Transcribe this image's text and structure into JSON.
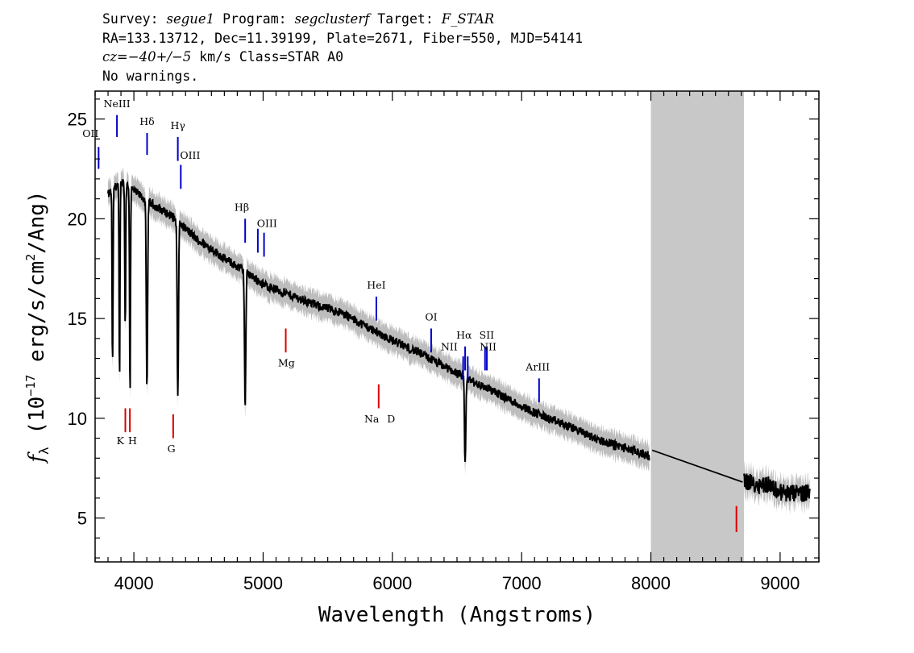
{
  "header": {
    "survey_label": "Survey: ",
    "survey": "segue1",
    "program_label": " Program: ",
    "program": "segclusterf",
    "target_label": " Target: ",
    "target": "F_STAR",
    "line2": "RA=133.13712, Dec=11.39199, Plate=2671, Fiber=550, MJD=54141",
    "cz_label": "cz=",
    "cz": "−40+/−5",
    "cz_rest": " km/s Class=STAR A0",
    "line4": "No warnings."
  },
  "colors": {
    "emission": "#0000cc",
    "absorption": "#dd0000",
    "spectrum": "#000000",
    "error_band": "#bdbdbd",
    "masked_region": "#c8c8c8"
  },
  "chart_data": {
    "type": "line",
    "xlabel": "Wavelength (Angstroms)",
    "ylabel_parts": {
      "f": "f",
      "sub": "λ",
      "open": " (10",
      "exp1": "−17",
      "mid": " erg/s/cm",
      "exp2": "2",
      "close": "/Ang)"
    },
    "xlim": [
      3700,
      9300
    ],
    "ylim": [
      2.8,
      26.4
    ],
    "x_ticks": [
      4000,
      5000,
      6000,
      7000,
      8000,
      9000
    ],
    "x_tick_labels": [
      "4000",
      "5000",
      "6000",
      "7000",
      "8000",
      "9000"
    ],
    "y_ticks": [
      5,
      10,
      15,
      20,
      25
    ],
    "y_tick_labels": [
      "5",
      "10",
      "15",
      "20",
      "25"
    ],
    "masked_region": [
      8000,
      8720
    ],
    "continuum": [
      [
        3800,
        21.2
      ],
      [
        3900,
        21.9
      ],
      [
        4000,
        21.4
      ],
      [
        4100,
        20.9
      ],
      [
        4200,
        20.5
      ],
      [
        4300,
        20.1
      ],
      [
        4400,
        19.5
      ],
      [
        4500,
        18.9
      ],
      [
        4600,
        18.5
      ],
      [
        4700,
        18.0
      ],
      [
        4800,
        17.6
      ],
      [
        4900,
        17.2
      ],
      [
        5000,
        16.7
      ],
      [
        5200,
        16.2
      ],
      [
        5400,
        15.7
      ],
      [
        5600,
        15.3
      ],
      [
        5800,
        14.6
      ],
      [
        6000,
        13.9
      ],
      [
        6200,
        13.3
      ],
      [
        6400,
        12.6
      ],
      [
        6600,
        11.9
      ],
      [
        6800,
        11.3
      ],
      [
        7000,
        10.6
      ],
      [
        7200,
        10.0
      ],
      [
        7400,
        9.5
      ],
      [
        7600,
        8.9
      ],
      [
        7800,
        8.5
      ],
      [
        7990,
        8.1
      ]
    ],
    "red_continuum": [
      [
        8720,
        6.9
      ],
      [
        8800,
        6.7
      ],
      [
        8900,
        6.7
      ],
      [
        9000,
        6.3
      ],
      [
        9100,
        6.2
      ],
      [
        9230,
        6.3
      ]
    ],
    "interpolation": [
      [
        8010,
        8.4
      ],
      [
        8710,
        6.8
      ]
    ],
    "absorption_features": [
      {
        "wave": 3835,
        "flux": 12.5
      },
      {
        "wave": 3889,
        "flux": 11.8
      },
      {
        "wave": 3933,
        "flux": 14.5
      },
      {
        "wave": 3970,
        "flux": 11.2
      },
      {
        "wave": 4101,
        "flux": 11.3
      },
      {
        "wave": 4340,
        "flux": 11.0
      },
      {
        "wave": 4861,
        "flux": 10.5
      },
      {
        "wave": 6563,
        "flux": 7.6
      }
    ],
    "emission_lines": [
      {
        "label": "OII",
        "wave": 3727,
        "y_top": 23.6,
        "y_bottom": 22.5
      },
      {
        "label": "NeIII",
        "wave": 3869,
        "y_top": 25.2,
        "y_bottom": 24.1
      },
      {
        "label": "Hδ",
        "wave": 4102,
        "y_top": 24.3,
        "y_bottom": 23.2
      },
      {
        "label": "Hγ",
        "wave": 4340,
        "y_top": 24.1,
        "y_bottom": 22.9
      },
      {
        "label": "OIII",
        "wave": 4363,
        "y_top": 22.7,
        "y_bottom": 21.5
      },
      {
        "label": "Hβ",
        "wave": 4861,
        "y_top": 20.0,
        "y_bottom": 18.8
      },
      {
        "label": "OIII",
        "wave": 4959,
        "y_top": 19.5,
        "y_bottom": 18.3
      },
      {
        "label": "OIII",
        "wave": 5007,
        "y_top": 19.3,
        "y_bottom": 18.1
      },
      {
        "label": "HeI",
        "wave": 5876,
        "y_top": 16.1,
        "y_bottom": 14.9
      },
      {
        "label": "OI",
        "wave": 6300,
        "y_top": 14.5,
        "y_bottom": 13.3
      },
      {
        "label": "NII",
        "wave": 6548,
        "y_top": 13.1,
        "y_bottom": 11.9
      },
      {
        "label": "Hα",
        "wave": 6563,
        "y_top": 13.6,
        "y_bottom": 12.4
      },
      {
        "label": "NII",
        "wave": 6583,
        "y_top": 13.1,
        "y_bottom": 11.9
      },
      {
        "label": "SII",
        "wave": 6717,
        "y_top": 13.6,
        "y_bottom": 12.4
      },
      {
        "label": "SII",
        "wave": 6731,
        "y_top": 13.6,
        "y_bottom": 12.4
      },
      {
        "label": "ArIII",
        "wave": 7135,
        "y_top": 12.0,
        "y_bottom": 10.8
      }
    ],
    "absorption_lines": [
      {
        "label": "K",
        "wave": 3934,
        "y_top": 10.5,
        "y_bottom": 9.3
      },
      {
        "label": "H",
        "wave": 3969,
        "y_top": 10.5,
        "y_bottom": 9.3
      },
      {
        "label": "G",
        "wave": 4304,
        "y_top": 10.2,
        "y_bottom": 9.0
      },
      {
        "label": "Mg",
        "wave": 5175,
        "y_top": 14.5,
        "y_bottom": 13.3
      },
      {
        "label": "Na",
        "wave": 5894,
        "y_top": 11.7,
        "y_bottom": 10.5
      },
      {
        "label": "",
        "wave": 8662,
        "y_top": 5.6,
        "y_bottom": 4.3
      }
    ],
    "line_label_texts": [
      {
        "text": "OII",
        "wave": 3727,
        "y": 24.1,
        "anchor": "end"
      },
      {
        "text": "NeIII",
        "wave": 3869,
        "y": 25.6,
        "anchor": "middle"
      },
      {
        "text": "Hδ",
        "wave": 4102,
        "y": 24.7,
        "anchor": "middle"
      },
      {
        "text": "Hγ",
        "wave": 4340,
        "y": 24.5,
        "anchor": "middle"
      },
      {
        "text": "OIII",
        "wave": 4435,
        "y": 23.0,
        "anchor": "middle"
      },
      {
        "text": "Hβ",
        "wave": 4835,
        "y": 20.4,
        "anchor": "middle"
      },
      {
        "text": "OIII",
        "wave": 5030,
        "y": 19.6,
        "anchor": "middle"
      },
      {
        "text": "HeI",
        "wave": 5876,
        "y": 16.5,
        "anchor": "middle"
      },
      {
        "text": "OI",
        "wave": 6300,
        "y": 14.9,
        "anchor": "middle"
      },
      {
        "text": "NII",
        "wave": 6440,
        "y": 13.4,
        "anchor": "middle"
      },
      {
        "text": "Hα",
        "wave": 6555,
        "y": 14.0,
        "anchor": "middle"
      },
      {
        "text": "NII",
        "wave": 6740,
        "y": 13.4,
        "anchor": "middle"
      },
      {
        "text": "SII",
        "wave": 6730,
        "y": 14.0,
        "anchor": "middle"
      },
      {
        "text": "ArIII",
        "wave": 7125,
        "y": 12.4,
        "anchor": "middle"
      },
      {
        "text": "K",
        "wave": 3895,
        "y": 8.7,
        "anchor": "middle"
      },
      {
        "text": "H",
        "wave": 3990,
        "y": 8.7,
        "anchor": "middle"
      },
      {
        "text": "G",
        "wave": 4290,
        "y": 8.3,
        "anchor": "middle"
      },
      {
        "text": "Mg",
        "wave": 5180,
        "y": 12.6,
        "anchor": "middle"
      },
      {
        "text": "Na",
        "wave": 5840,
        "y": 9.8,
        "anchor": "middle"
      },
      {
        "text": "D",
        "wave": 5990,
        "y": 9.8,
        "anchor": "middle"
      }
    ]
  }
}
